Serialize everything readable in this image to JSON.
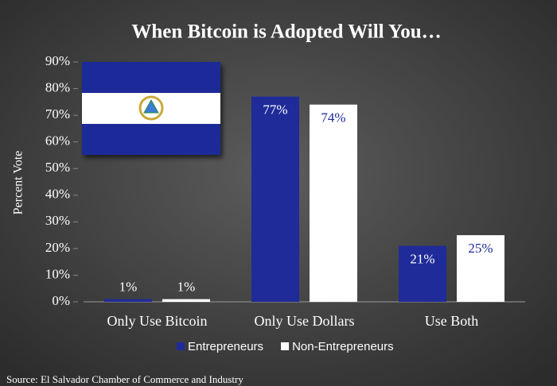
{
  "chart_data": {
    "type": "bar",
    "title": "When Bitcoin is Adopted Will You…",
    "y_label": "Percent Vote",
    "source": "Source: El Salvador Chamber of Commerce and Industry",
    "categories": [
      "Only Use Bitcoin",
      "Only Use Dollars",
      "Use Both"
    ],
    "series": [
      {
        "name": "Entrepreneurs",
        "color": "#1f2b99",
        "values": [
          1,
          77,
          21
        ],
        "value_labels": [
          "1%",
          "77%",
          "21%"
        ]
      },
      {
        "name": "Non-Entrepreneurs",
        "color": "#ffffff",
        "values": [
          1,
          74,
          25
        ],
        "value_labels": [
          "1%",
          "74%",
          "25%"
        ]
      }
    ],
    "ylim": [
      0,
      90
    ],
    "yticks": [
      {
        "value": 0,
        "label": "0%"
      },
      {
        "value": 10,
        "label": "10%"
      },
      {
        "value": 20,
        "label": "20%"
      },
      {
        "value": 30,
        "label": "30%"
      },
      {
        "value": 40,
        "label": "40%"
      },
      {
        "value": 50,
        "label": "50%"
      },
      {
        "value": 60,
        "label": "60%"
      },
      {
        "value": 70,
        "label": "70%"
      },
      {
        "value": 80,
        "label": "80%"
      },
      {
        "value": 90,
        "label": "90%"
      }
    ],
    "legend": "bottom"
  }
}
